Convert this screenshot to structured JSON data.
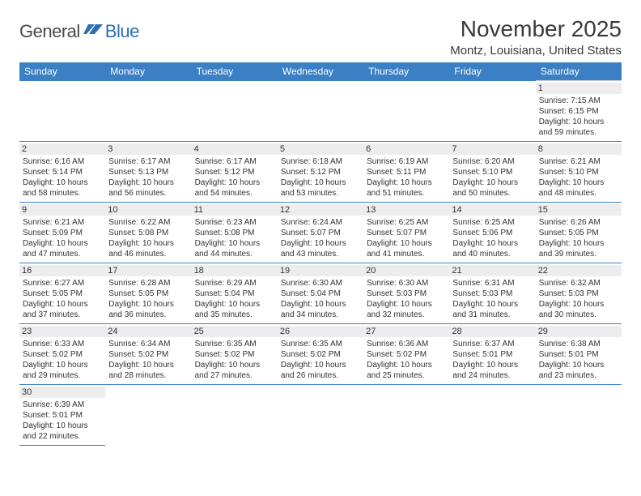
{
  "logo": {
    "part1": "General",
    "part2": "Blue"
  },
  "title": "November 2025",
  "location": "Montz, Louisiana, United States",
  "colors": {
    "header_bg": "#3b7fc4",
    "header_text": "#ffffff",
    "row_border": "#3b7fc4",
    "daynum_bg": "#ededed",
    "text": "#333333",
    "logo_gray": "#4a4a4a",
    "logo_blue": "#2d6fb5"
  },
  "day_headers": [
    "Sunday",
    "Monday",
    "Tuesday",
    "Wednesday",
    "Thursday",
    "Friday",
    "Saturday"
  ],
  "weeks": [
    [
      null,
      null,
      null,
      null,
      null,
      null,
      {
        "n": "1",
        "sunrise": "7:15 AM",
        "sunset": "6:15 PM",
        "daylight": "10 hours and 59 minutes."
      }
    ],
    [
      {
        "n": "2",
        "sunrise": "6:16 AM",
        "sunset": "5:14 PM",
        "daylight": "10 hours and 58 minutes."
      },
      {
        "n": "3",
        "sunrise": "6:17 AM",
        "sunset": "5:13 PM",
        "daylight": "10 hours and 56 minutes."
      },
      {
        "n": "4",
        "sunrise": "6:17 AM",
        "sunset": "5:12 PM",
        "daylight": "10 hours and 54 minutes."
      },
      {
        "n": "5",
        "sunrise": "6:18 AM",
        "sunset": "5:12 PM",
        "daylight": "10 hours and 53 minutes."
      },
      {
        "n": "6",
        "sunrise": "6:19 AM",
        "sunset": "5:11 PM",
        "daylight": "10 hours and 51 minutes."
      },
      {
        "n": "7",
        "sunrise": "6:20 AM",
        "sunset": "5:10 PM",
        "daylight": "10 hours and 50 minutes."
      },
      {
        "n": "8",
        "sunrise": "6:21 AM",
        "sunset": "5:10 PM",
        "daylight": "10 hours and 48 minutes."
      }
    ],
    [
      {
        "n": "9",
        "sunrise": "6:21 AM",
        "sunset": "5:09 PM",
        "daylight": "10 hours and 47 minutes."
      },
      {
        "n": "10",
        "sunrise": "6:22 AM",
        "sunset": "5:08 PM",
        "daylight": "10 hours and 46 minutes."
      },
      {
        "n": "11",
        "sunrise": "6:23 AM",
        "sunset": "5:08 PM",
        "daylight": "10 hours and 44 minutes."
      },
      {
        "n": "12",
        "sunrise": "6:24 AM",
        "sunset": "5:07 PM",
        "daylight": "10 hours and 43 minutes."
      },
      {
        "n": "13",
        "sunrise": "6:25 AM",
        "sunset": "5:07 PM",
        "daylight": "10 hours and 41 minutes."
      },
      {
        "n": "14",
        "sunrise": "6:25 AM",
        "sunset": "5:06 PM",
        "daylight": "10 hours and 40 minutes."
      },
      {
        "n": "15",
        "sunrise": "6:26 AM",
        "sunset": "5:05 PM",
        "daylight": "10 hours and 39 minutes."
      }
    ],
    [
      {
        "n": "16",
        "sunrise": "6:27 AM",
        "sunset": "5:05 PM",
        "daylight": "10 hours and 37 minutes."
      },
      {
        "n": "17",
        "sunrise": "6:28 AM",
        "sunset": "5:05 PM",
        "daylight": "10 hours and 36 minutes."
      },
      {
        "n": "18",
        "sunrise": "6:29 AM",
        "sunset": "5:04 PM",
        "daylight": "10 hours and 35 minutes."
      },
      {
        "n": "19",
        "sunrise": "6:30 AM",
        "sunset": "5:04 PM",
        "daylight": "10 hours and 34 minutes."
      },
      {
        "n": "20",
        "sunrise": "6:30 AM",
        "sunset": "5:03 PM",
        "daylight": "10 hours and 32 minutes."
      },
      {
        "n": "21",
        "sunrise": "6:31 AM",
        "sunset": "5:03 PM",
        "daylight": "10 hours and 31 minutes."
      },
      {
        "n": "22",
        "sunrise": "6:32 AM",
        "sunset": "5:03 PM",
        "daylight": "10 hours and 30 minutes."
      }
    ],
    [
      {
        "n": "23",
        "sunrise": "6:33 AM",
        "sunset": "5:02 PM",
        "daylight": "10 hours and 29 minutes."
      },
      {
        "n": "24",
        "sunrise": "6:34 AM",
        "sunset": "5:02 PM",
        "daylight": "10 hours and 28 minutes."
      },
      {
        "n": "25",
        "sunrise": "6:35 AM",
        "sunset": "5:02 PM",
        "daylight": "10 hours and 27 minutes."
      },
      {
        "n": "26",
        "sunrise": "6:35 AM",
        "sunset": "5:02 PM",
        "daylight": "10 hours and 26 minutes."
      },
      {
        "n": "27",
        "sunrise": "6:36 AM",
        "sunset": "5:02 PM",
        "daylight": "10 hours and 25 minutes."
      },
      {
        "n": "28",
        "sunrise": "6:37 AM",
        "sunset": "5:01 PM",
        "daylight": "10 hours and 24 minutes."
      },
      {
        "n": "29",
        "sunrise": "6:38 AM",
        "sunset": "5:01 PM",
        "daylight": "10 hours and 23 minutes."
      }
    ],
    [
      {
        "n": "30",
        "sunrise": "6:39 AM",
        "sunset": "5:01 PM",
        "daylight": "10 hours and 22 minutes."
      },
      null,
      null,
      null,
      null,
      null,
      null
    ]
  ],
  "labels": {
    "sunrise": "Sunrise:",
    "sunset": "Sunset:",
    "daylight": "Daylight:"
  }
}
